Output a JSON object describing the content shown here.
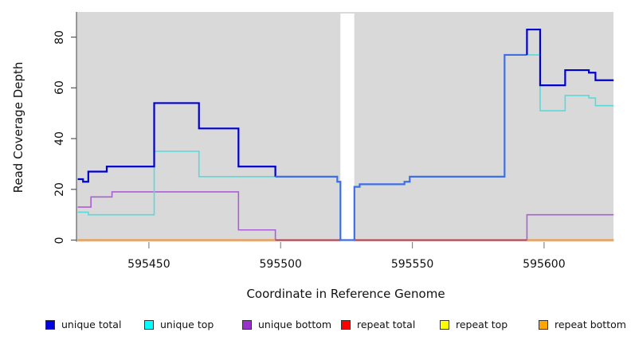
{
  "chart_data": {
    "type": "line",
    "line_style": "step",
    "title": "",
    "xlabel": "Coordinate in Reference Genome",
    "ylabel": "Read Coverage Depth",
    "xlim": [
      595423,
      595626.4
    ],
    "ylim": [
      0,
      88
    ],
    "x_ticks": [
      595450,
      595500,
      595550,
      595600
    ],
    "y_ticks": [
      0,
      20,
      40,
      60,
      80
    ],
    "grid": "off",
    "legend_position": "bottom",
    "plot_background": "#d9d9d9",
    "gap_region": {
      "x_start": 595522.7,
      "x_end": 595527.95,
      "color": "#ffffff"
    },
    "draw_order": [
      "unique bottom",
      "repeat top",
      "repeat total",
      "repeat bottom",
      "unique top",
      "unique total"
    ],
    "series": [
      {
        "name": "unique total",
        "line_color": "#0000CD",
        "overlap_color": "#3E6FE3",
        "overlap_with": "unique top",
        "swatch_color": "#0000E0",
        "line_width": 2.2,
        "steps": [
          [
            595423,
            24
          ],
          [
            595425,
            23
          ],
          [
            595427,
            27
          ],
          [
            595434,
            29
          ],
          [
            595452,
            54
          ],
          [
            595469,
            44
          ],
          [
            595484,
            29
          ],
          [
            595498,
            25
          ],
          [
            595521.5,
            23
          ],
          [
            595522.7,
            0
          ],
          [
            595528,
            21
          ],
          [
            595530,
            22
          ],
          [
            595547,
            23
          ],
          [
            595549,
            25
          ],
          [
            595585,
            73
          ],
          [
            595593.5,
            83
          ],
          [
            595598.5,
            61
          ],
          [
            595608,
            67
          ],
          [
            595617,
            66
          ],
          [
            595619.5,
            63
          ]
        ]
      },
      {
        "name": "unique top",
        "line_color": "#58DADA",
        "swatch_color": "#00FFFF",
        "line_width": 1.6,
        "steps": [
          [
            595423,
            11
          ],
          [
            595427,
            10
          ],
          [
            595452,
            35
          ],
          [
            595469,
            25
          ],
          [
            595521.5,
            23
          ],
          [
            595522.7,
            0
          ],
          [
            595528,
            21
          ],
          [
            595530,
            22
          ],
          [
            595547,
            23
          ],
          [
            595549,
            25
          ],
          [
            595585,
            73
          ],
          [
            595598.5,
            51
          ],
          [
            595608,
            57
          ],
          [
            595617,
            56
          ],
          [
            595619.5,
            53
          ]
        ]
      },
      {
        "name": "unique bottom",
        "line_color": "#AB5FD6",
        "swatch_color": "#9932CC",
        "line_width": 1.6,
        "steps": [
          [
            595423,
            13
          ],
          [
            595428,
            17
          ],
          [
            595436,
            19
          ],
          [
            595484,
            4
          ],
          [
            595498,
            0
          ],
          [
            595593.5,
            10
          ]
        ]
      },
      {
        "name": "repeat total",
        "line_color": "#C62057",
        "swatch_color": "#FF0000",
        "line_width": 1.8,
        "steps": [
          [
            595423,
            0
          ]
        ]
      },
      {
        "name": "repeat top",
        "line_color": "#FFFF00",
        "swatch_color": "#FFFF00",
        "line_width": 1.5,
        "steps": [
          [
            595423,
            0
          ]
        ]
      },
      {
        "name": "repeat bottom",
        "line_color": "#FFA014",
        "swatch_color": "#FFA500",
        "line_width": 1.8,
        "steps": [
          [
            595423,
            0
          ]
        ],
        "visible_segments": [
          [
            595423,
            595498
          ],
          [
            595593.5,
            595626.4
          ]
        ]
      }
    ],
    "legend": {
      "entries": [
        {
          "label": "unique total"
        },
        {
          "label": "unique top"
        },
        {
          "label": "unique bottom"
        },
        {
          "label": "repeat total"
        },
        {
          "label": "repeat top"
        },
        {
          "label": "repeat bottom"
        }
      ]
    }
  }
}
